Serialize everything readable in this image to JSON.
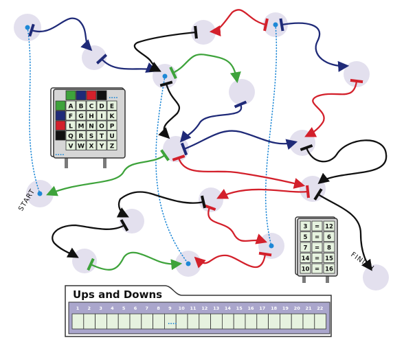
{
  "puzzle_title": "Ups and Downs",
  "start_label": "START",
  "finish_label": "FINISH",
  "answer_slots": [
    "1",
    "2",
    "3",
    "4",
    "5",
    "6",
    "7",
    "8",
    "9",
    "10",
    "11",
    "12",
    "13",
    "14",
    "15",
    "16",
    "17",
    "18",
    "19",
    "20",
    "21",
    "22"
  ],
  "answer_placeholder": "....",
  "letter_board": {
    "header_colors": [
      "#3ea33b",
      "#1f2a78",
      "#d3202b",
      "#111111"
    ],
    "row_colors": [
      "#3ea33b",
      "#1f2a78",
      "#d3202b",
      "#111111"
    ],
    "placeholder": "....",
    "rows": [
      [
        "A",
        "B",
        "C",
        "D",
        "E"
      ],
      [
        "F",
        "G",
        "H",
        "I",
        "K"
      ],
      [
        "L",
        "M",
        "N",
        "O",
        "P"
      ],
      [
        "Q",
        "R",
        "S",
        "T",
        "U"
      ],
      [
        "V",
        "W",
        "X",
        "Y",
        "Z"
      ]
    ]
  },
  "number_board": {
    "rows": [
      [
        "3",
        "=",
        "12"
      ],
      [
        "5",
        "=",
        "6"
      ],
      [
        "7",
        "=",
        "8"
      ],
      [
        "14",
        "=",
        "15"
      ],
      [
        "10",
        "=",
        "16"
      ]
    ]
  },
  "colors": {
    "navy": "#1f2a78",
    "red": "#d3202b",
    "green": "#3ea33b",
    "black": "#111111",
    "node": "#e3e0ee",
    "dot": "#1e88d6",
    "answer_strip": "#aaa6cc",
    "answer_cell": "#e6f2df"
  }
}
